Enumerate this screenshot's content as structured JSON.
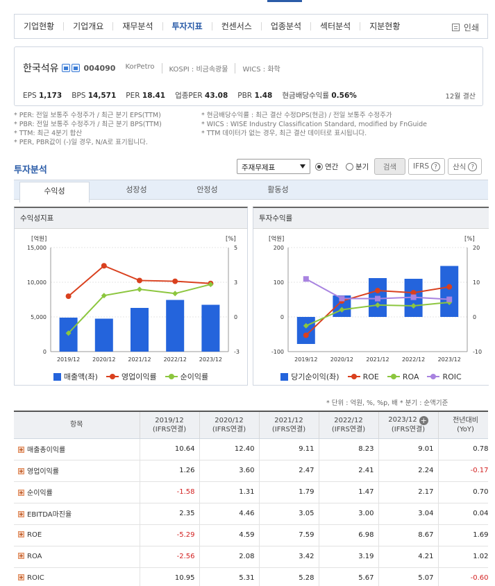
{
  "nav": {
    "tabs": [
      "기업현황",
      "기업개요",
      "재무분석",
      "투자지표",
      "컨센서스",
      "업종분석",
      "섹터분석",
      "지분현황"
    ],
    "active_index": 3,
    "print_label": "인쇄"
  },
  "company": {
    "name": "한국석유",
    "code": "004090",
    "eng_name": "KorPetro",
    "market": "KOSPI : 비금속광물",
    "wics": "WICS : 화학"
  },
  "indicators": {
    "eps_label": "EPS",
    "eps": "1,173",
    "bps_label": "BPS",
    "bps": "14,571",
    "per_label": "PER",
    "per": "18.41",
    "industry_per_label": "업종PER",
    "industry_per": "43.08",
    "pbr_label": "PBR",
    "pbr": "1.48",
    "dividend_label": "현금배당수익률",
    "dividend": "0.56%",
    "settlement": "12월 결산"
  },
  "notes": {
    "left": [
      "* PER: 전일 보통주 수정주가 / 최근 분기 EPS(TTM)",
      "* PBR: 전일 보통주 수정주가 / 최근 분기 BPS(TTM)",
      "* TTM: 최근 4분기 합산",
      "* PER, PBR값이 (-)일 경우, N/A로 표기됩니다."
    ],
    "right": [
      "* 현금배당수익률 : 최근 결산 수정DPS(현금) / 전일 보통주 수정주가",
      "* WICS : WISE Industry Classification Standard, modified by FnGuide",
      "* TTM 데이터가 없는 경우, 최근 결산 데이터로 표시됩니다."
    ]
  },
  "analysis": {
    "title": "투자분석",
    "select_value": "주재무제표",
    "radio_annual": "연간",
    "radio_quarter": "분기",
    "search_button": "검색",
    "ifrs_button": "IFRS",
    "formula_button": "산식",
    "subtabs": [
      "수익성",
      "성장성",
      "안정성",
      "활동성"
    ]
  },
  "chart_data": [
    {
      "type": "bar",
      "title": "수익성지표",
      "ylabel_left": "[억원]",
      "ylabel_right": "[%]",
      "categories": [
        "2019/12",
        "2020/12",
        "2021/12",
        "2022/12",
        "2023/12"
      ],
      "left_ticks": [
        "15,000",
        "10,000",
        "5,000",
        "0"
      ],
      "right_ticks": [
        "5",
        "3",
        "0",
        "-3"
      ],
      "ylim_left": [
        0,
        15000
      ],
      "ylim_right": [
        -3,
        5
      ],
      "series": [
        {
          "name": "매출액(좌)",
          "type": "bar",
          "axis": "left",
          "color": "#2464dc",
          "values": [
            4900,
            4750,
            6300,
            7450,
            6750
          ]
        },
        {
          "name": "영업이익률",
          "type": "line",
          "axis": "right",
          "color": "#d9401e",
          "values": [
            1.26,
            3.6,
            2.47,
            2.41,
            2.24
          ]
        },
        {
          "name": "순이익률",
          "type": "line",
          "axis": "right",
          "color": "#8cc63e",
          "values": [
            -1.58,
            1.31,
            1.79,
            1.47,
            2.17
          ]
        }
      ]
    },
    {
      "type": "bar",
      "title": "투자수익률",
      "ylabel_left": "[억원]",
      "ylabel_right": "[%]",
      "categories": [
        "2019/12",
        "2020/12",
        "2021/12",
        "2022/12",
        "2023/12"
      ],
      "left_ticks": [
        "200",
        "100",
        "0",
        "-100"
      ],
      "right_ticks": [
        "20",
        "10",
        "0",
        "-10"
      ],
      "ylim_left": [
        -100,
        200
      ],
      "ylim_right": [
        -10,
        20
      ],
      "series": [
        {
          "name": "당기순이익(좌)",
          "type": "bar",
          "axis": "left",
          "color": "#2464dc",
          "values": [
            -78,
            62,
            112,
            110,
            147
          ]
        },
        {
          "name": "ROE",
          "type": "line",
          "axis": "right",
          "color": "#d9401e",
          "values": [
            -5.29,
            4.59,
            7.59,
            6.98,
            8.67
          ]
        },
        {
          "name": "ROA",
          "type": "line",
          "axis": "right",
          "color": "#8cc63e",
          "values": [
            -2.56,
            2.08,
            3.42,
            3.19,
            4.21
          ]
        },
        {
          "name": "ROIC",
          "type": "line",
          "axis": "right",
          "color": "#a883e0",
          "values": [
            10.95,
            5.31,
            5.28,
            5.67,
            5.07
          ]
        }
      ]
    }
  ],
  "table": {
    "unit_note": "* 단위 : 억원, %, %p, 배      * 분기 : 순액기준",
    "item_header": "항목",
    "columns": [
      {
        "year": "2019/12",
        "basis": "(IFRS연결)"
      },
      {
        "year": "2020/12",
        "basis": "(IFRS연결)"
      },
      {
        "year": "2021/12",
        "basis": "(IFRS연결)"
      },
      {
        "year": "2022/12",
        "basis": "(IFRS연결)"
      },
      {
        "year": "2023/12",
        "basis": "(IFRS연결)"
      }
    ],
    "yoy_header": "전년대비",
    "yoy_sub": "(YoY)",
    "rows": [
      {
        "label": "매출총이익률",
        "values": [
          "10.64",
          "12.40",
          "9.11",
          "8.23",
          "9.01"
        ],
        "yoy": "0.78"
      },
      {
        "label": "영업이익률",
        "values": [
          "1.26",
          "3.60",
          "2.47",
          "2.41",
          "2.24"
        ],
        "yoy": "-0.17"
      },
      {
        "label": "순이익률",
        "values": [
          "-1.58",
          "1.31",
          "1.79",
          "1.47",
          "2.17"
        ],
        "yoy": "0.70"
      },
      {
        "label": "EBITDA마진율",
        "values": [
          "2.35",
          "4.46",
          "3.05",
          "3.00",
          "3.04"
        ],
        "yoy": "0.04"
      },
      {
        "label": "ROE",
        "values": [
          "-5.29",
          "4.59",
          "7.59",
          "6.98",
          "8.67"
        ],
        "yoy": "1.69"
      },
      {
        "label": "ROA",
        "values": [
          "-2.56",
          "2.08",
          "3.42",
          "3.19",
          "4.21"
        ],
        "yoy": "1.02"
      },
      {
        "label": "ROIC",
        "values": [
          "10.95",
          "5.31",
          "5.28",
          "5.67",
          "5.07"
        ],
        "yoy": "-0.60"
      }
    ]
  }
}
